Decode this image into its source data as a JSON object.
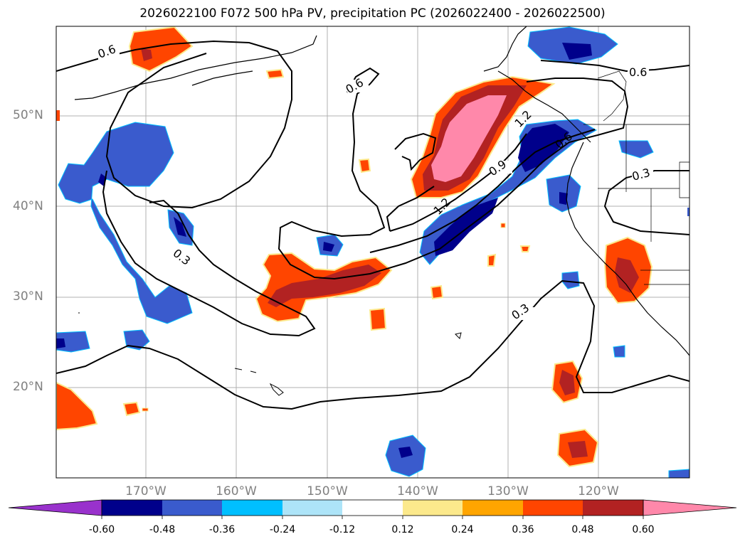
{
  "title": "2026022100 F072 500 hPa PV, precipitation PC (2026022400 - 2026022500)",
  "lat_labels": [
    "50°N",
    "40°N",
    "30°N",
    "20°N"
  ],
  "lon_labels": [
    "170°W",
    "160°W",
    "150°W",
    "140°W",
    "130°W",
    "120°W"
  ],
  "contour_labels": [
    "0.6",
    "0.6",
    "0.6",
    "0.3",
    "0.3",
    "0.3",
    "0.9",
    "1.2",
    "1.2",
    "0.6"
  ],
  "colorbar": {
    "ticks": [
      "-0.60",
      "-0.48",
      "-0.36",
      "-0.24",
      "-0.12",
      "0.12",
      "0.24",
      "0.36",
      "0.48",
      "0.60"
    ],
    "colors": [
      "#9932cc",
      "#00008b",
      "#3a5bcd",
      "#00bfff",
      "#ade4f8",
      "#ffffff",
      "#fce98c",
      "#ffa500",
      "#ff4500",
      "#b22222",
      "#ff88aa"
    ]
  },
  "fill_colors": {
    "pos_weak": "#fce98c",
    "pos_mid": "#ffa500",
    "pos_strong": "#ff4500",
    "pos_vstrong": "#b22222",
    "pos_max": "#ff88aa",
    "neg_weak": "#ade4f8",
    "neg_mid": "#00bfff",
    "neg_strong": "#3a5bcd",
    "neg_vstrong": "#00008b"
  }
}
